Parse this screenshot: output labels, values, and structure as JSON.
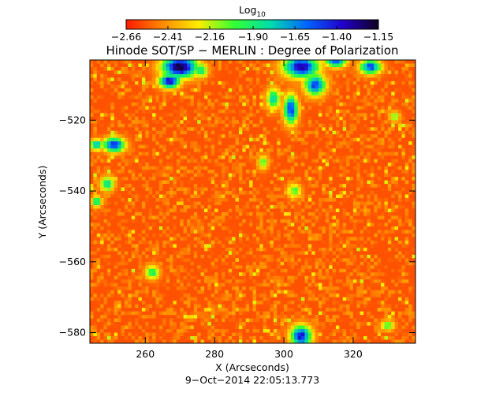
{
  "chart_data": {
    "type": "heatmap",
    "title": "Hinode SOT/SP − MERLIN : Degree of Polarization",
    "subtitle": "9−Oct−2014 22:05:13.773",
    "xlabel": "X (Arcseconds)",
    "ylabel": "Y (Arcseconds)",
    "xlim": [
      244,
      338
    ],
    "ylim": [
      -583,
      -503
    ],
    "x_ticks": [
      {
        "value": 260,
        "label": "260"
      },
      {
        "value": 280,
        "label": "280"
      },
      {
        "value": 300,
        "label": "300"
      },
      {
        "value": 320,
        "label": "320"
      }
    ],
    "y_ticks": [
      {
        "value": -520,
        "label": "−520"
      },
      {
        "value": -540,
        "label": "−540"
      },
      {
        "value": -560,
        "label": "−560"
      },
      {
        "value": -580,
        "label": "−580"
      }
    ],
    "colorbar": {
      "label_main": "Log",
      "label_sub": "10",
      "colormap": "rainbow-reversed",
      "range": [
        -2.66,
        -1.15
      ],
      "colors": [
        "#ff1a00",
        "#ff8800",
        "#ffee00",
        "#33ff33",
        "#00ddaa",
        "#0066ff",
        "#2200cc",
        "#100020"
      ],
      "ticks": [
        {
          "value": -2.66,
          "label": "−2.66"
        },
        {
          "value": -2.41,
          "label": "−2.41"
        },
        {
          "value": -2.16,
          "label": "−2.16"
        },
        {
          "value": -1.9,
          "label": "−1.90"
        },
        {
          "value": -1.65,
          "label": "−1.65"
        },
        {
          "value": -1.4,
          "label": "−1.40"
        },
        {
          "value": -1.15,
          "label": "−1.15"
        }
      ]
    },
    "background_level": -2.55,
    "features": [
      {
        "x": 270,
        "y": -505,
        "rx": 5,
        "ry": 3,
        "peak": -1.15
      },
      {
        "x": 267,
        "y": -509,
        "rx": 3,
        "ry": 2,
        "peak": -1.35
      },
      {
        "x": 276,
        "y": -506,
        "rx": 2,
        "ry": 2,
        "peak": -1.8
      },
      {
        "x": 305,
        "y": -505,
        "rx": 5,
        "ry": 3,
        "peak": -1.3
      },
      {
        "x": 309,
        "y": -510,
        "rx": 3,
        "ry": 3,
        "peak": -1.5
      },
      {
        "x": 315,
        "y": -503,
        "rx": 3,
        "ry": 2,
        "peak": -1.45
      },
      {
        "x": 325,
        "y": -505,
        "rx": 3,
        "ry": 2,
        "peak": -1.5
      },
      {
        "x": 302,
        "y": -517,
        "rx": 2,
        "ry": 4,
        "peak": -1.45
      },
      {
        "x": 297,
        "y": -514,
        "rx": 2,
        "ry": 3,
        "peak": -1.8
      },
      {
        "x": 251,
        "y": -527,
        "rx": 3,
        "ry": 2,
        "peak": -1.4
      },
      {
        "x": 246,
        "y": -527,
        "rx": 2,
        "ry": 1.5,
        "peak": -1.7
      },
      {
        "x": 249,
        "y": -538,
        "rx": 2,
        "ry": 2,
        "peak": -1.8
      },
      {
        "x": 246,
        "y": -543,
        "rx": 1.5,
        "ry": 1.5,
        "peak": -1.8
      },
      {
        "x": 305,
        "y": -581,
        "rx": 3,
        "ry": 3,
        "peak": -1.4
      },
      {
        "x": 262,
        "y": -563,
        "rx": 2,
        "ry": 2,
        "peak": -1.9
      },
      {
        "x": 303,
        "y": -540,
        "rx": 2,
        "ry": 2,
        "peak": -2.0
      },
      {
        "x": 294,
        "y": -532,
        "rx": 1.5,
        "ry": 2,
        "peak": -2.0
      },
      {
        "x": 332,
        "y": -519,
        "rx": 1.5,
        "ry": 1.5,
        "peak": -2.0
      },
      {
        "x": 330,
        "y": -578,
        "rx": 2,
        "ry": 1.5,
        "peak": -2.0
      }
    ]
  }
}
